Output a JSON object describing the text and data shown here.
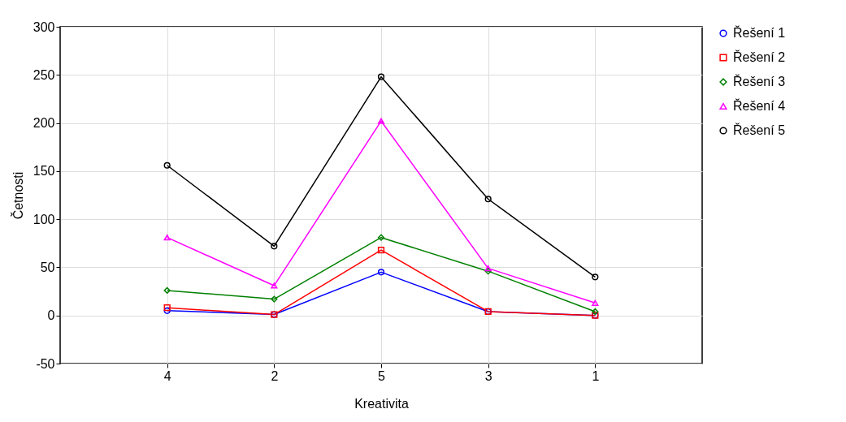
{
  "chart_data": {
    "type": "line",
    "xlabel": "Kreativita",
    "ylabel": "Četnosti",
    "categories": [
      "4",
      "2",
      "5",
      "3",
      "1"
    ],
    "ylim": [
      -50,
      300
    ],
    "yticks": [
      -50,
      0,
      50,
      100,
      150,
      200,
      250,
      300
    ],
    "grid": true,
    "legend": "right",
    "series": [
      {
        "name": "Řešení 1",
        "color": "#0000ff",
        "marker": "circle",
        "values": [
          5,
          1,
          45,
          4,
          0
        ]
      },
      {
        "name": "Řešení 2",
        "color": "#ff0000",
        "marker": "square",
        "values": [
          8,
          1,
          68,
          4,
          0
        ]
      },
      {
        "name": "Řešení 3",
        "color": "#008000",
        "marker": "diamond",
        "values": [
          26,
          17,
          81,
          46,
          4
        ]
      },
      {
        "name": "Řešení 4",
        "color": "#ff00ff",
        "marker": "triangle",
        "values": [
          81,
          31,
          202,
          49,
          13
        ]
      },
      {
        "name": "Řešení 5",
        "color": "#000000",
        "marker": "circle",
        "values": [
          156,
          72,
          248,
          121,
          40
        ]
      }
    ]
  }
}
